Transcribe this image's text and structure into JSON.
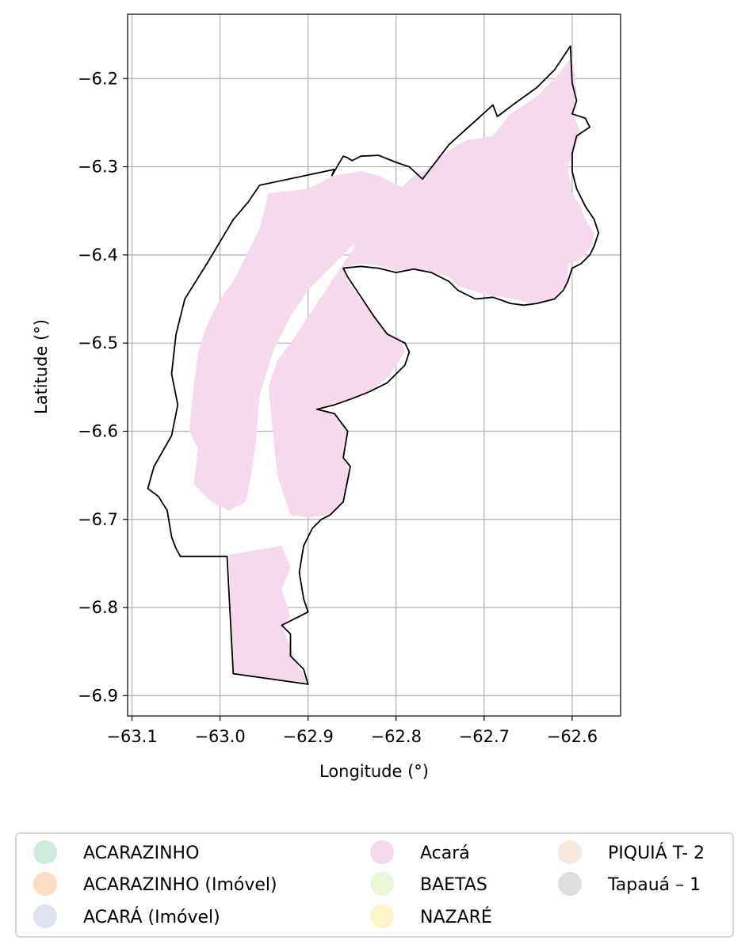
{
  "chart_data": {
    "type": "map",
    "xlabel": "Longitude (°)",
    "ylabel": "Latitude (°)",
    "xlim": [
      -63.105,
      -62.545
    ],
    "ylim": [
      -6.923,
      -6.127
    ],
    "grid": true,
    "x_ticks": [
      {
        "value": -63.1,
        "label": "−63.1"
      },
      {
        "value": -63.0,
        "label": "−63.0"
      },
      {
        "value": -62.9,
        "label": "−62.9"
      },
      {
        "value": -62.8,
        "label": "−62.8"
      },
      {
        "value": -62.7,
        "label": "−62.7"
      },
      {
        "value": -62.6,
        "label": "−62.6"
      }
    ],
    "y_ticks": [
      {
        "value": -6.2,
        "label": "−6.2"
      },
      {
        "value": -6.3,
        "label": "−6.3"
      },
      {
        "value": -6.4,
        "label": "−6.4"
      },
      {
        "value": -6.5,
        "label": "−6.5"
      },
      {
        "value": -6.6,
        "label": "−6.6"
      },
      {
        "value": -6.7,
        "label": "−6.7"
      },
      {
        "value": -6.8,
        "label": "−6.8"
      },
      {
        "value": -6.9,
        "label": "−6.9"
      }
    ],
    "boundary": [
      [
        -62.602,
        -6.163
      ],
      [
        -62.62,
        -6.19
      ],
      [
        -62.64,
        -6.21
      ],
      [
        -62.665,
        -6.228
      ],
      [
        -62.685,
        -6.243
      ],
      [
        -62.69,
        -6.23
      ],
      [
        -62.74,
        -6.275
      ],
      [
        -62.77,
        -6.314
      ],
      [
        -62.785,
        -6.3
      ],
      [
        -62.8,
        -6.295
      ],
      [
        -62.82,
        -6.287
      ],
      [
        -62.84,
        -6.288
      ],
      [
        -62.85,
        -6.293
      ],
      [
        -62.855,
        -6.29
      ],
      [
        -62.86,
        -6.288
      ],
      [
        -62.873,
        -6.31
      ],
      [
        -62.87,
        -6.303
      ],
      [
        -62.955,
        -6.321
      ],
      [
        -62.968,
        -6.34
      ],
      [
        -62.985,
        -6.36
      ],
      [
        -63.0,
        -6.385
      ],
      [
        -63.015,
        -6.41
      ],
      [
        -63.04,
        -6.45
      ],
      [
        -63.05,
        -6.49
      ],
      [
        -63.055,
        -6.535
      ],
      [
        -63.048,
        -6.57
      ],
      [
        -63.055,
        -6.605
      ],
      [
        -63.075,
        -6.64
      ],
      [
        -63.082,
        -6.665
      ],
      [
        -63.07,
        -6.674
      ],
      [
        -63.06,
        -6.69
      ],
      [
        -63.055,
        -6.72
      ],
      [
        -63.05,
        -6.733
      ],
      [
        -63.045,
        -6.742
      ],
      [
        -62.992,
        -6.742
      ],
      [
        -62.985,
        -6.875
      ],
      [
        -62.9,
        -6.887
      ],
      [
        -62.905,
        -6.87
      ],
      [
        -62.92,
        -6.855
      ],
      [
        -62.92,
        -6.83
      ],
      [
        -62.93,
        -6.82
      ],
      [
        -62.9,
        -6.805
      ],
      [
        -62.905,
        -6.79
      ],
      [
        -62.91,
        -6.76
      ],
      [
        -62.905,
        -6.73
      ],
      [
        -62.895,
        -6.71
      ],
      [
        -62.885,
        -6.7
      ],
      [
        -62.875,
        -6.695
      ],
      [
        -62.86,
        -6.68
      ],
      [
        -62.852,
        -6.64
      ],
      [
        -62.86,
        -6.63
      ],
      [
        -62.855,
        -6.6
      ],
      [
        -62.87,
        -6.58
      ],
      [
        -62.89,
        -6.575
      ],
      [
        -62.87,
        -6.57
      ],
      [
        -62.85,
        -6.563
      ],
      [
        -62.83,
        -6.555
      ],
      [
        -62.81,
        -6.545
      ],
      [
        -62.79,
        -6.525
      ],
      [
        -62.785,
        -6.51
      ],
      [
        -62.79,
        -6.5
      ],
      [
        -62.81,
        -6.49
      ],
      [
        -62.825,
        -6.47
      ],
      [
        -62.845,
        -6.44
      ],
      [
        -62.855,
        -6.425
      ],
      [
        -62.86,
        -6.415
      ],
      [
        -62.84,
        -6.413
      ],
      [
        -62.82,
        -6.415
      ],
      [
        -62.8,
        -6.42
      ],
      [
        -62.78,
        -6.416
      ],
      [
        -62.76,
        -6.42
      ],
      [
        -62.74,
        -6.43
      ],
      [
        -62.73,
        -6.44
      ],
      [
        -62.72,
        -6.445
      ],
      [
        -62.71,
        -6.45
      ],
      [
        -62.69,
        -6.448
      ],
      [
        -62.67,
        -6.455
      ],
      [
        -62.655,
        -6.457
      ],
      [
        -62.64,
        -6.455
      ],
      [
        -62.62,
        -6.45
      ],
      [
        -62.61,
        -6.44
      ],
      [
        -62.605,
        -6.43
      ],
      [
        -62.6,
        -6.415
      ],
      [
        -62.59,
        -6.41
      ],
      [
        -62.58,
        -6.4
      ],
      [
        -62.575,
        -6.39
      ],
      [
        -62.57,
        -6.375
      ],
      [
        -62.575,
        -6.36
      ],
      [
        -62.585,
        -6.345
      ],
      [
        -62.595,
        -6.325
      ],
      [
        -62.6,
        -6.305
      ],
      [
        -62.6,
        -6.285
      ],
      [
        -62.595,
        -6.265
      ],
      [
        -62.58,
        -6.255
      ],
      [
        -62.585,
        -6.245
      ],
      [
        -62.6,
        -6.24
      ],
      [
        -62.595,
        -6.225
      ],
      [
        -62.6,
        -6.205
      ],
      [
        -62.602,
        -6.163
      ]
    ],
    "series": [
      {
        "name": "Acará",
        "color": "#f5d9ec",
        "polygons": [
          [
            [
              -62.6,
              -6.175
            ],
            [
              -62.595,
              -6.215
            ],
            [
              -62.6,
              -6.24
            ],
            [
              -62.59,
              -6.26
            ],
            [
              -62.605,
              -6.3
            ],
            [
              -62.6,
              -6.33
            ],
            [
              -62.59,
              -6.345
            ],
            [
              -62.585,
              -6.36
            ],
            [
              -62.575,
              -6.375
            ],
            [
              -62.578,
              -6.39
            ],
            [
              -62.59,
              -6.405
            ],
            [
              -62.605,
              -6.41
            ],
            [
              -62.605,
              -6.43
            ],
            [
              -62.62,
              -6.45
            ],
            [
              -62.645,
              -6.455
            ],
            [
              -62.665,
              -6.45
            ],
            [
              -62.68,
              -6.448
            ],
            [
              -62.7,
              -6.445
            ],
            [
              -62.715,
              -6.44
            ],
            [
              -62.73,
              -6.435
            ],
            [
              -62.74,
              -6.425
            ],
            [
              -62.76,
              -6.42
            ],
            [
              -62.78,
              -6.415
            ],
            [
              -62.8,
              -6.418
            ],
            [
              -62.82,
              -6.412
            ],
            [
              -62.84,
              -6.41
            ],
            [
              -62.86,
              -6.415
            ],
            [
              -62.855,
              -6.43
            ],
            [
              -62.84,
              -6.45
            ],
            [
              -62.825,
              -6.47
            ],
            [
              -62.815,
              -6.485
            ],
            [
              -62.795,
              -6.495
            ],
            [
              -62.79,
              -6.51
            ],
            [
              -62.81,
              -6.54
            ],
            [
              -62.83,
              -6.555
            ],
            [
              -62.85,
              -6.563
            ],
            [
              -62.87,
              -6.568
            ],
            [
              -62.89,
              -6.575
            ],
            [
              -62.87,
              -6.58
            ],
            [
              -62.855,
              -6.6
            ],
            [
              -62.86,
              -6.63
            ],
            [
              -62.852,
              -6.65
            ],
            [
              -62.86,
              -6.68
            ],
            [
              -62.875,
              -6.695
            ],
            [
              -62.9,
              -6.698
            ],
            [
              -62.92,
              -6.695
            ],
            [
              -62.935,
              -6.65
            ],
            [
              -62.94,
              -6.6
            ],
            [
              -62.945,
              -6.55
            ],
            [
              -62.935,
              -6.52
            ],
            [
              -62.92,
              -6.5
            ],
            [
              -62.9,
              -6.47
            ],
            [
              -62.88,
              -6.44
            ],
            [
              -62.86,
              -6.41
            ],
            [
              -62.84,
              -6.38
            ],
            [
              -62.82,
              -6.35
            ],
            [
              -62.8,
              -6.33
            ],
            [
              -62.78,
              -6.31
            ],
            [
              -62.76,
              -6.3
            ],
            [
              -62.745,
              -6.285
            ],
            [
              -62.73,
              -6.275
            ],
            [
              -62.72,
              -6.27
            ],
            [
              -62.69,
              -6.265
            ],
            [
              -62.67,
              -6.24
            ],
            [
              -62.64,
              -6.22
            ],
            [
              -62.62,
              -6.2
            ],
            [
              -62.6,
              -6.175
            ]
          ],
          [
            [
              -62.945,
              -6.33
            ],
            [
              -62.9,
              -6.325
            ],
            [
              -62.87,
              -6.31
            ],
            [
              -62.84,
              -6.305
            ],
            [
              -62.82,
              -6.31
            ],
            [
              -62.8,
              -6.32
            ],
            [
              -62.78,
              -6.33
            ],
            [
              -62.77,
              -6.35
            ],
            [
              -62.8,
              -6.37
            ],
            [
              -62.85,
              -6.39
            ],
            [
              -62.88,
              -6.42
            ],
            [
              -62.9,
              -6.44
            ],
            [
              -62.92,
              -6.47
            ],
            [
              -62.94,
              -6.51
            ],
            [
              -62.955,
              -6.56
            ],
            [
              -62.96,
              -6.62
            ],
            [
              -62.97,
              -6.68
            ],
            [
              -62.99,
              -6.69
            ],
            [
              -63.01,
              -6.68
            ],
            [
              -63.03,
              -6.66
            ],
            [
              -63.025,
              -6.62
            ],
            [
              -63.035,
              -6.6
            ],
            [
              -63.03,
              -6.55
            ],
            [
              -63.025,
              -6.51
            ],
            [
              -63.015,
              -6.48
            ],
            [
              -63.0,
              -6.45
            ],
            [
              -62.985,
              -6.43
            ],
            [
              -62.975,
              -6.41
            ],
            [
              -62.965,
              -6.39
            ],
            [
              -62.955,
              -6.37
            ],
            [
              -62.95,
              -6.35
            ],
            [
              -62.945,
              -6.33
            ]
          ],
          [
            [
              -62.99,
              -6.74
            ],
            [
              -62.96,
              -6.735
            ],
            [
              -62.93,
              -6.73
            ],
            [
              -62.92,
              -6.755
            ],
            [
              -62.93,
              -6.78
            ],
            [
              -62.92,
              -6.81
            ],
            [
              -62.93,
              -6.82
            ],
            [
              -62.92,
              -6.845
            ],
            [
              -62.91,
              -6.87
            ],
            [
              -62.9,
              -6.885
            ],
            [
              -62.985,
              -6.875
            ],
            [
              -62.99,
              -6.74
            ]
          ]
        ]
      },
      {
        "name": "ACARAZINHO",
        "color": "#cfeadb",
        "polygons": []
      },
      {
        "name": "ACARAZINHO (Imóvel)",
        "color": "#fddcc4",
        "polygons": []
      },
      {
        "name": "ACARÁ (Imóvel)",
        "color": "#dfe3f0",
        "polygons": []
      },
      {
        "name": "BAETAS",
        "color": "#ebf6d8",
        "polygons": []
      },
      {
        "name": "NAZARÉ",
        "color": "#fdf4c8",
        "polygons": []
      },
      {
        "name": "PIQUIÁ T- 2",
        "color": "#f6e8db",
        "polygons": []
      },
      {
        "name": "Tapauá – 1",
        "color": "#dedede",
        "polygons": []
      }
    ]
  },
  "legend": {
    "items": [
      {
        "label": "ACARAZINHO",
        "color": "#cfeadb"
      },
      {
        "label": "ACARAZINHO (Imóvel)",
        "color": "#fddcc4"
      },
      {
        "label": "ACARÁ (Imóvel)",
        "color": "#dfe3f0"
      },
      {
        "label": "Acará",
        "color": "#f5d9ec"
      },
      {
        "label": "BAETAS",
        "color": "#ebf6d8"
      },
      {
        "label": "NAZARÉ",
        "color": "#fdf4c8"
      },
      {
        "label": "PIQUIÁ T- 2",
        "color": "#f6e8db"
      },
      {
        "label": "Tapauá – 1",
        "color": "#dedede"
      }
    ]
  }
}
